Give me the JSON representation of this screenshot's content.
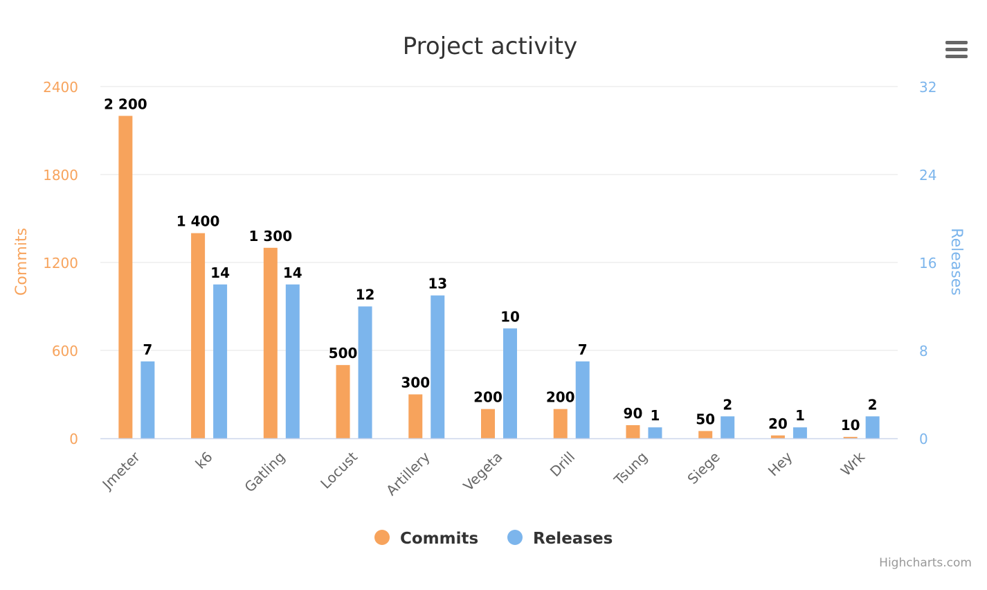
{
  "menu": {
    "icon": "hamburger-menu-icon"
  },
  "credits": "Highcharts.com",
  "chart_data": {
    "type": "bar",
    "title": "Project activity",
    "categories": [
      "Jmeter",
      "k6",
      "Gatling",
      "Locust",
      "Artillery",
      "Vegeta",
      "Drill",
      "Tsung",
      "Siege",
      "Hey",
      "Wrk"
    ],
    "series": [
      {
        "name": "Commits",
        "axis": "left",
        "color": "#F7A35C",
        "values": [
          2200,
          1400,
          1300,
          500,
          300,
          200,
          200,
          90,
          50,
          20,
          10
        ],
        "labels": [
          "2 200",
          "1 400",
          "1 300",
          "500",
          "300",
          "200",
          "200",
          "90",
          "50",
          "20",
          "10"
        ]
      },
      {
        "name": "Releases",
        "axis": "right",
        "color": "#7CB5EC",
        "values": [
          7,
          14,
          14,
          12,
          13,
          10,
          7,
          1,
          2,
          1,
          2
        ],
        "labels": [
          "7",
          "14",
          "14",
          "12",
          "13",
          "10",
          "7",
          "1",
          "2",
          "1",
          "2"
        ]
      }
    ],
    "y_left": {
      "label": "Commits",
      "range": [
        0,
        2400
      ],
      "ticks": [
        "0",
        "600",
        "1200",
        "1800",
        "2400"
      ],
      "color": "#F7A35C"
    },
    "y_right": {
      "label": "Releases",
      "range": [
        0,
        32
      ],
      "ticks": [
        "0",
        "8",
        "16",
        "24",
        "32"
      ],
      "color": "#7CB5EC"
    },
    "grid": true,
    "legend": "bottom-center"
  }
}
